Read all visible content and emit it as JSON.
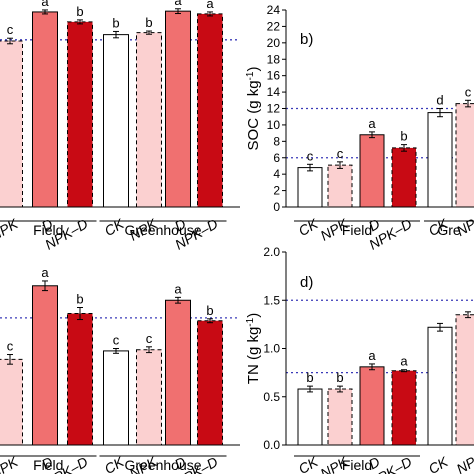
{
  "colors": {
    "CK": "#ffffff",
    "NPK": "#fbd0d0",
    "D": "#f07070",
    "NPK-D": "#c80a14",
    "ref_line": "#3a3ab8",
    "axis": "#000000"
  },
  "chart_data": [
    {
      "panel": "a",
      "type": "bar",
      "panel_label": "",
      "ylabel": "",
      "ylim": [
        0,
        5.2
      ],
      "categories": [
        "NPK",
        "D",
        "NPK–D",
        "CK",
        "NPK",
        "D",
        "NPK–D"
      ],
      "category_keys": [
        "NPK",
        "D",
        "NPK-D",
        "CK",
        "NPK",
        "D",
        "NPK-D"
      ],
      "values": [
        4.17,
        4.9,
        4.65,
        4.33,
        4.38,
        4.92,
        4.85
      ],
      "errors": [
        0.07,
        0.05,
        0.05,
        0.08,
        0.04,
        0.06,
        0.05
      ],
      "letters": [
        "c",
        "a",
        "b",
        "b",
        "b",
        "a",
        "a"
      ],
      "groups": [
        "",
        "",
        "",
        "Greenhouse",
        "Greenhouse",
        "Greenhouse",
        "Greenhouse"
      ],
      "group_labels": [
        {
          "text": "Field",
          "cats": [
            0,
            2
          ]
        },
        {
          "text": "Greenhouse",
          "cats": [
            3,
            6
          ]
        }
      ],
      "ref_lines": [
        {
          "value": 4.2
        }
      ]
    },
    {
      "panel": "b",
      "type": "bar",
      "panel_label": "b)",
      "ylabel": "SOC (g kg",
      "ylabel_sup": "-1",
      "ylabel_close": ")",
      "ylim": [
        0,
        24
      ],
      "yticks": [
        0,
        2,
        4,
        6,
        8,
        10,
        12,
        14,
        16,
        18,
        20,
        22,
        24
      ],
      "categories": [
        "CK",
        "NPK",
        "D",
        "NPK–D",
        "CK",
        "NP"
      ],
      "category_keys": [
        "CK",
        "NPK",
        "D",
        "NPK-D",
        "CK",
        "NPK"
      ],
      "values": [
        4.8,
        5.1,
        8.8,
        7.2,
        11.5,
        12.6
      ],
      "errors": [
        0.4,
        0.4,
        0.35,
        0.4,
        0.5,
        0.4
      ],
      "letters": [
        "c",
        "c",
        "a",
        "b",
        "d",
        "c"
      ],
      "groups": [
        "Field",
        "Field",
        "Field",
        "Field",
        "Gre",
        "Gre"
      ],
      "group_labels": [
        {
          "text": "Field",
          "cats": [
            0,
            3
          ]
        },
        {
          "text": "Gre",
          "cats": [
            4,
            5
          ]
        }
      ],
      "ref_lines": [
        {
          "value": 12.0
        },
        {
          "value": 6.0
        }
      ]
    },
    {
      "panel": "c",
      "type": "bar",
      "panel_label": "",
      "ylabel": "",
      "ylim": [
        0,
        0.8
      ],
      "categories": [
        "NPK",
        "D",
        "NPK–D",
        "CK",
        "NPK",
        "D",
        "NPK–D"
      ],
      "category_keys": [
        "NPK",
        "D",
        "NPK-D",
        "CK",
        "NPK",
        "D",
        "NPK-D"
      ],
      "values": [
        0.355,
        0.66,
        0.545,
        0.39,
        0.395,
        0.6,
        0.515
      ],
      "errors": [
        0.02,
        0.02,
        0.025,
        0.01,
        0.012,
        0.012,
        0.008
      ],
      "letters": [
        "c",
        "a",
        "b",
        "c",
        "c",
        "a",
        "b"
      ],
      "groups": [
        "Field",
        "Field",
        "Field",
        "Greenhouse",
        "Greenhouse",
        "Greenhouse",
        "Greenhouse"
      ],
      "group_labels": [
        {
          "text": "Field",
          "cats": [
            0,
            2
          ]
        },
        {
          "text": "Greenhouse",
          "cats": [
            3,
            6
          ]
        }
      ],
      "ref_lines": [
        {
          "value": 0.527
        }
      ]
    },
    {
      "panel": "d",
      "type": "bar",
      "panel_label": "d)",
      "ylabel": "TN (g kg",
      "ylabel_sup": "-1",
      "ylabel_close": ")",
      "ylim": [
        0,
        2.0
      ],
      "yticks": [
        0.0,
        0.5,
        1.0,
        1.5,
        2.0
      ],
      "categories": [
        "CK",
        "NPK",
        "D",
        "NPK–D",
        "CK",
        "NP"
      ],
      "category_keys": [
        "CK",
        "NPK",
        "D",
        "NPK-D",
        "CK",
        "NPK"
      ],
      "values": [
        0.58,
        0.58,
        0.81,
        0.77,
        1.22,
        1.35
      ],
      "errors": [
        0.03,
        0.03,
        0.03,
        0.01,
        0.04,
        0.03
      ],
      "letters": [
        "b",
        "b",
        "a",
        "a",
        "",
        ""
      ],
      "groups": [
        "Field",
        "Field",
        "Field",
        "Field",
        "",
        ""
      ],
      "group_labels": [
        {
          "text": "Field",
          "cats": [
            0,
            3
          ]
        }
      ],
      "ref_lines": [
        {
          "value": 1.5
        },
        {
          "value": 0.75
        }
      ]
    }
  ]
}
